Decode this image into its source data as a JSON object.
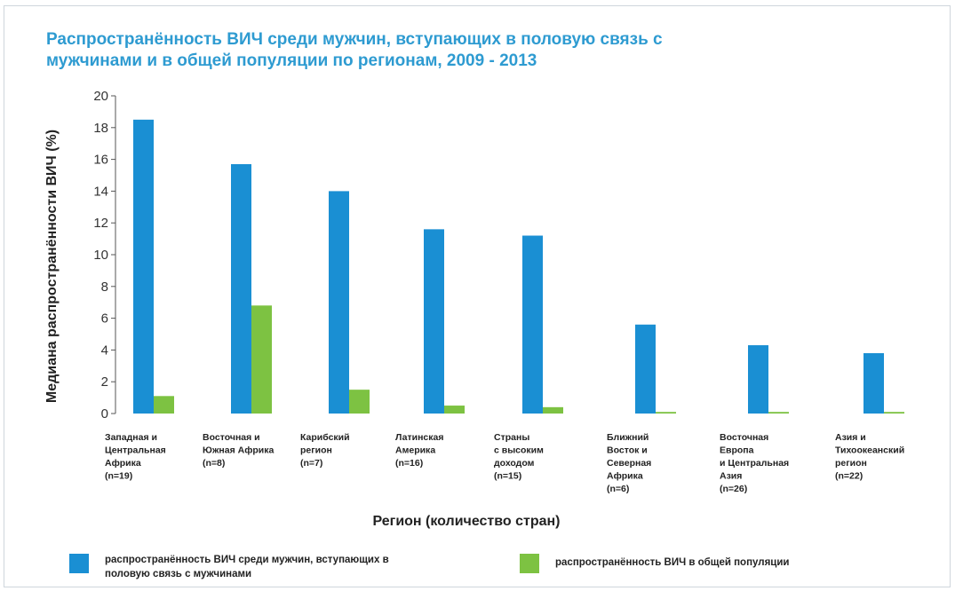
{
  "chart_data": {
    "type": "bar",
    "title": "Распространённость ВИЧ среди мужчин, вступающих в половую связь с\nмужчинами и в общей популяции по регионам, 2009 - 2013",
    "xlabel": "Регион (количество стран)",
    "ylabel": "Медиана распространённости ВИЧ (%)",
    "ylim": [
      0,
      20
    ],
    "yticks": [
      "0",
      "2",
      "4",
      "6",
      "8",
      "10",
      "12",
      "14",
      "16",
      "18",
      "20"
    ],
    "grid": false,
    "legend_position": "bottom",
    "categories": [
      "Западная и\nЦентральная\nАфрика\n(n=19)",
      "Восточная и\nЮжная Африка\n(n=8)",
      "Карибский\nрегион\n(n=7)",
      "Латинская\nАмерика\n(n=16)",
      "Страны\nс высоким\nдоходом\n(n=15)",
      "Ближний\nВосток и\nСеверная\nАфрика\n(n=6)",
      "Восточная\nЕвропа\nи Центральная\nАзия\n(n=26)",
      "Азия и\nТихоокеанский\nрегион\n(n=22)"
    ],
    "series": [
      {
        "name": "распространённость ВИЧ среди мужчин, вступающих в половую связь с мужчинами",
        "color": "#1a8fd3",
        "values": [
          18.5,
          15.7,
          14.0,
          11.6,
          11.2,
          5.6,
          4.3,
          3.8
        ]
      },
      {
        "name": "распространённость ВИЧ в общей популяции",
        "color": "#7dc242",
        "values": [
          1.1,
          6.8,
          1.5,
          0.5,
          0.4,
          0.1,
          0.1,
          0.1
        ]
      }
    ]
  }
}
